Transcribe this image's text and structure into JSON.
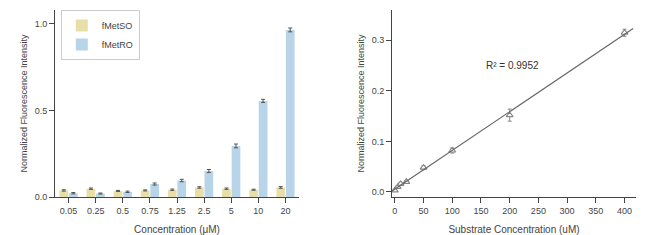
{
  "chart_data": [
    {
      "type": "bar",
      "categories": [
        "0.05",
        "0.25",
        "0.5",
        "0.75",
        "1.25",
        "2.5",
        "5",
        "10",
        "20"
      ],
      "series": [
        {
          "name": "fMetSO",
          "color": "#e8dfa8",
          "values": [
            0.038,
            0.048,
            0.035,
            0.038,
            0.042,
            0.055,
            0.048,
            0.042,
            0.055
          ],
          "errors": [
            0.004,
            0.004,
            0.003,
            0.003,
            0.004,
            0.004,
            0.004,
            0.003,
            0.005
          ]
        },
        {
          "name": "fMetRO",
          "color": "#b8d4e8",
          "values": [
            0.022,
            0.02,
            0.03,
            0.075,
            0.095,
            0.15,
            0.295,
            0.555,
            0.965
          ],
          "errors": [
            0.004,
            0.003,
            0.004,
            0.006,
            0.007,
            0.009,
            0.011,
            0.009,
            0.011
          ]
        }
      ],
      "xlabel": "Concentration (μM)",
      "ylabel": "Normalized Fluorescence Intensity",
      "ylim": [
        0,
        1.08
      ],
      "yticks": [
        {
          "value": 0,
          "label": "0.0"
        },
        {
          "value": 0.5,
          "label": "0.5"
        },
        {
          "value": 1,
          "label": "1.0"
        }
      ],
      "grid": false,
      "legend": "upper left"
    },
    {
      "type": "scatter",
      "series": [
        {
          "type": "scatter",
          "color": "#888888",
          "marker": "triangle",
          "x": [
            0,
            5,
            10,
            20,
            50,
            100,
            200,
            400
          ],
          "values": [
            0.003,
            0.01,
            0.016,
            0.02,
            0.048,
            0.082,
            0.152,
            0.315
          ],
          "errors": [
            0.002,
            0.002,
            0.003,
            0.003,
            0.004,
            0.005,
            0.012,
            0.007
          ]
        },
        {
          "type": "line",
          "color": "#666666",
          "x": [
            -5,
            415
          ],
          "values": [
            0.00172,
            0.32359
          ]
        }
      ],
      "xlabel": "Substrate Concentration (uM)",
      "ylabel": "Normalized Fluorescence Intensity",
      "xlim": [
        -5,
        420
      ],
      "ylim": [
        -0.01,
        0.36
      ],
      "xticks": [
        0,
        50,
        100,
        150,
        200,
        250,
        300,
        350,
        400
      ],
      "yticks": [
        {
          "value": 0,
          "label": "0.0"
        },
        0.1,
        0.2,
        0.3
      ],
      "grid": false,
      "annotations": [
        {
          "text": "R² = 0.9952",
          "x": 155,
          "y": 0.235
        }
      ]
    }
  ]
}
